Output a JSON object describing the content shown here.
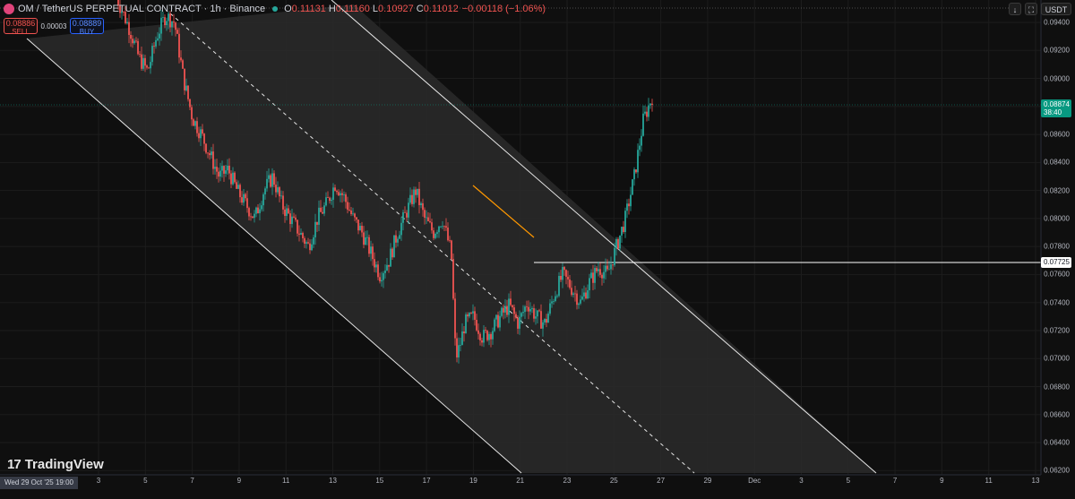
{
  "header": {
    "title": "OM / TetherUS PERPETUAL CONTRACT · 1h · Binance",
    "o_label": "O",
    "o_value": "0.11131",
    "h_label": "H",
    "h_value": "0.11160",
    "l_label": "L",
    "l_value": "0.10927",
    "c_label": "C",
    "c_value": "0.11012",
    "change": "−0.00118 (−1.06%)"
  },
  "trade": {
    "sell_price": "0.08886",
    "sell_label": "SELL",
    "spread": "0.00003",
    "buy_price": "0.08889",
    "buy_label": "BUY"
  },
  "toolbar": {
    "scroll_icon": "↓",
    "fullscreen_icon": "⛶",
    "currency": "USDT"
  },
  "branding": {
    "logo_mark": "17",
    "logo_text": "TradingView"
  },
  "cursor_date": "Wed 29 Oct '25   19:00",
  "price_tags": {
    "last_price": "0.08874",
    "countdown": "38:40",
    "level": "0.07725"
  },
  "colors": {
    "up": "#26a69a",
    "down": "#ef5350",
    "channel": "#ffffff",
    "annotation": "#ff9800"
  },
  "chart_data": {
    "type": "candlestick",
    "title": "OM / TetherUS PERPETUAL CONTRACT · 1h · Binance",
    "ylim": [
      0.0617,
      0.0956
    ],
    "y_ticks": [
      "0.09400",
      "0.09200",
      "0.09000",
      "0.08800",
      "0.08600",
      "0.08400",
      "0.08200",
      "0.08000",
      "0.07800",
      "0.07600",
      "0.07400",
      "0.07200",
      "0.07000",
      "0.06800",
      "0.06600",
      "0.06400",
      "0.06200"
    ],
    "x_ticks": [
      "3",
      "5",
      "7",
      "9",
      "11",
      "13",
      "15",
      "17",
      "19",
      "21",
      "23",
      "25",
      "27",
      "29",
      "Dec",
      "3",
      "5",
      "7",
      "9",
      "11",
      "13"
    ],
    "horizontal_level": 0.07725,
    "last_price": 0.08874,
    "path": [
      [
        0,
        0.0958
      ],
      [
        3,
        0.0935
      ],
      [
        5,
        0.0915
      ],
      [
        7,
        0.0905
      ],
      [
        9,
        0.093
      ],
      [
        11,
        0.0945
      ],
      [
        13,
        0.094
      ],
      [
        15,
        0.09
      ],
      [
        17,
        0.0872
      ],
      [
        19,
        0.086
      ],
      [
        21,
        0.0845
      ],
      [
        23,
        0.083
      ],
      [
        25,
        0.0835
      ],
      [
        27,
        0.082
      ],
      [
        29,
        0.081
      ],
      [
        31,
        0.08
      ],
      [
        33,
        0.082
      ],
      [
        35,
        0.083
      ],
      [
        37,
        0.081
      ],
      [
        39,
        0.08
      ],
      [
        41,
        0.079
      ],
      [
        43,
        0.078
      ],
      [
        45,
        0.08
      ],
      [
        47,
        0.081
      ],
      [
        49,
        0.0825
      ],
      [
        51,
        0.0815
      ],
      [
        53,
        0.08
      ],
      [
        55,
        0.079
      ],
      [
        57,
        0.0775
      ],
      [
        59,
        0.076
      ],
      [
        61,
        0.077
      ],
      [
        63,
        0.079
      ],
      [
        65,
        0.0805
      ],
      [
        67,
        0.082
      ],
      [
        69,
        0.08
      ],
      [
        71,
        0.079
      ],
      [
        73,
        0.08
      ],
      [
        75,
        0.0775
      ],
      [
        76,
        0.07
      ],
      [
        77,
        0.071
      ],
      [
        78,
        0.0725
      ],
      [
        80,
        0.073
      ],
      [
        82,
        0.0715
      ],
      [
        84,
        0.072
      ],
      [
        86,
        0.073
      ],
      [
        88,
        0.0738
      ],
      [
        90,
        0.0725
      ],
      [
        92,
        0.074
      ],
      [
        94,
        0.073
      ],
      [
        96,
        0.0725
      ],
      [
        98,
        0.0745
      ],
      [
        100,
        0.076
      ],
      [
        102,
        0.075
      ],
      [
        104,
        0.074
      ],
      [
        106,
        0.0755
      ],
      [
        108,
        0.0765
      ],
      [
        110,
        0.076
      ],
      [
        112,
        0.078
      ],
      [
        114,
        0.08
      ],
      [
        116,
        0.083
      ],
      [
        118,
        0.087
      ],
      [
        120,
        0.0887
      ]
    ]
  }
}
